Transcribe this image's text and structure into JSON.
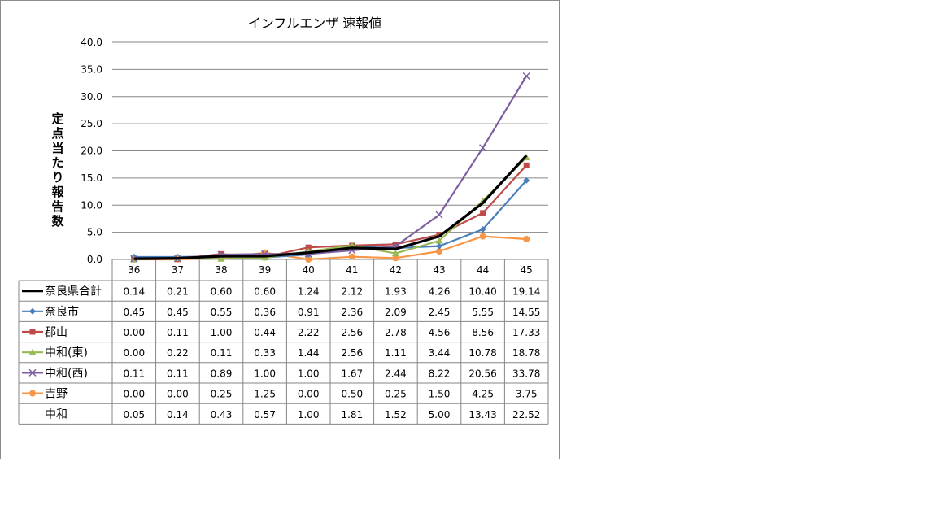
{
  "chart_data": {
    "type": "line",
    "title": "インフルエンザ 速報値",
    "ylabel": "定点当たり報告数",
    "ylim": [
      0,
      40
    ],
    "yticks": [
      "0.0",
      "5.0",
      "10.0",
      "15.0",
      "20.0",
      "25.0",
      "30.0",
      "35.0",
      "40.0"
    ],
    "grid": true,
    "legend": "data-table",
    "categories": [
      "36",
      "37",
      "38",
      "39",
      "40",
      "41",
      "42",
      "43",
      "44",
      "45"
    ],
    "series": [
      {
        "name": "奈良県合計",
        "color": "#000000",
        "marker": "none",
        "width": 3.2,
        "plotted": true,
        "values": [
          0.14,
          0.21,
          0.6,
          0.6,
          1.24,
          2.12,
          1.93,
          4.26,
          10.4,
          19.14
        ],
        "labels": [
          "0.14",
          "0.21",
          "0.60",
          "0.60",
          "1.24",
          "2.12",
          "1.93",
          "4.26",
          "10.40",
          "19.14"
        ]
      },
      {
        "name": "奈良市",
        "color": "#4a7ebb",
        "marker": "diamond",
        "width": 2.2,
        "plotted": true,
        "values": [
          0.45,
          0.45,
          0.55,
          0.36,
          0.91,
          2.36,
          2.09,
          2.45,
          5.55,
          14.55
        ],
        "labels": [
          "0.45",
          "0.45",
          "0.55",
          "0.36",
          "0.91",
          "2.36",
          "2.09",
          "2.45",
          "5.55",
          "14.55"
        ]
      },
      {
        "name": "郡山",
        "color": "#be4b48",
        "marker": "square",
        "width": 2.2,
        "plotted": true,
        "values": [
          0.0,
          0.11,
          1.0,
          0.44,
          2.22,
          2.56,
          2.78,
          4.56,
          8.56,
          17.33
        ],
        "labels": [
          "0.00",
          "0.11",
          "1.00",
          "0.44",
          "2.22",
          "2.56",
          "2.78",
          "4.56",
          "8.56",
          "17.33"
        ]
      },
      {
        "name": "中和(東)",
        "color": "#98b954",
        "marker": "triangle",
        "width": 2.2,
        "plotted": true,
        "values": [
          0.0,
          0.22,
          0.11,
          0.33,
          1.44,
          2.56,
          1.11,
          3.44,
          10.78,
          18.78
        ],
        "labels": [
          "0.00",
          "0.22",
          "0.11",
          "0.33",
          "1.44",
          "2.56",
          "1.11",
          "3.44",
          "10.78",
          "18.78"
        ]
      },
      {
        "name": "中和(西)",
        "color": "#7d5fa0",
        "marker": "x",
        "width": 2.2,
        "plotted": true,
        "values": [
          0.11,
          0.11,
          0.89,
          1.0,
          1.0,
          1.67,
          2.44,
          8.22,
          20.56,
          33.78
        ],
        "labels": [
          "0.11",
          "0.11",
          "0.89",
          "1.00",
          "1.00",
          "1.67",
          "2.44",
          "8.22",
          "20.56",
          "33.78"
        ]
      },
      {
        "name": "吉野",
        "color": "#f79646",
        "marker": "circle",
        "width": 2.2,
        "plotted": true,
        "values": [
          0.0,
          0.0,
          0.25,
          1.25,
          0.0,
          0.5,
          0.25,
          1.5,
          4.25,
          3.75
        ],
        "labels": [
          "0.00",
          "0.00",
          "0.25",
          "1.25",
          "0.00",
          "0.50",
          "0.25",
          "1.50",
          "4.25",
          "3.75"
        ]
      },
      {
        "name": "中和",
        "color": "#000000",
        "marker": "none",
        "width": 0,
        "plotted": false,
        "values": [
          0.05,
          0.14,
          0.43,
          0.57,
          1.0,
          1.81,
          1.52,
          5.0,
          13.43,
          22.52
        ],
        "labels": [
          "0.05",
          "0.14",
          "0.43",
          "0.57",
          "1.00",
          "1.81",
          "1.52",
          "5.00",
          "13.43",
          "22.52"
        ]
      }
    ]
  }
}
